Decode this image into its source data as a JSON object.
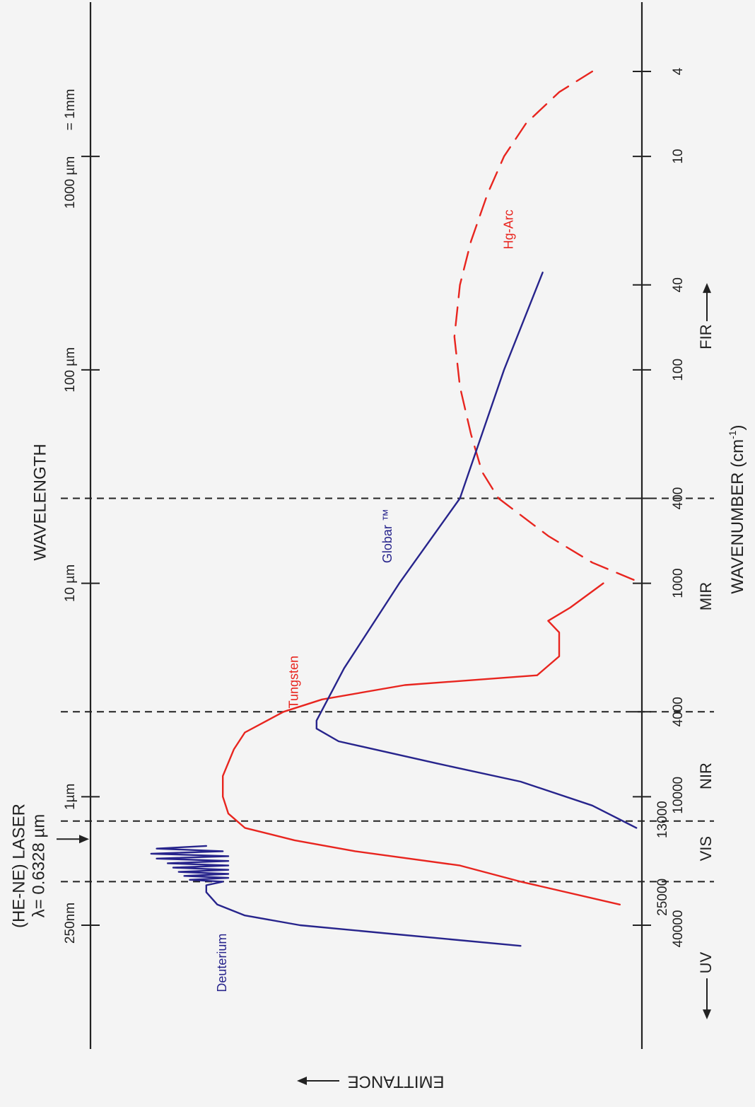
{
  "chart_data": {
    "type": "line",
    "title": "",
    "colors": {
      "red": "#e8251f",
      "blue": "#27248c",
      "axis": "#222222"
    },
    "wavelength_axis": {
      "label": "WAVELENGTH",
      "ticks": [
        {
          "label": "250nm",
          "wavenumber": 40000
        },
        {
          "label": "1µm",
          "wavenumber": 10000
        },
        {
          "label": "10 µm",
          "wavenumber": 1000
        },
        {
          "label": "100 µm",
          "wavenumber": 100
        },
        {
          "label": "1000 µm",
          "wavenumber": 10
        },
        {
          "label": "= 1mm",
          "wavenumber": 10
        }
      ]
    },
    "wavenumber_axis": {
      "label": "WAVENUMBER (cm",
      "label_sup": "-1",
      "label_end": ")",
      "range": [
        4,
        40000
      ],
      "scale": "log",
      "ticks": [
        4,
        10,
        40,
        100,
        400,
        1000,
        4000,
        10000,
        13000,
        25000,
        40000
      ],
      "tick_labels": [
        "4",
        "10",
        "40",
        "100",
        "400",
        "1000",
        "4000",
        "10000",
        "13000",
        "25000",
        "40000"
      ]
    },
    "emittance_label": "EMITTANCE",
    "emittance_range": [
      0,
      1
    ],
    "region_boundaries": [
      400,
      4000,
      13000,
      25000
    ],
    "regions": [
      {
        "label": "FIR",
        "wavenumber": 70,
        "arrow": "right"
      },
      {
        "label": "MIR",
        "wavenumber": 1150,
        "arrow": "none"
      },
      {
        "label": "NIR",
        "wavenumber": 8000,
        "arrow": "none"
      },
      {
        "label": "VIS",
        "wavenumber": 17500,
        "arrow": "none"
      },
      {
        "label": "UV",
        "wavenumber": 60000,
        "arrow": "left"
      }
    ],
    "laser": {
      "line1": "(HE-NE) LASER",
      "line2": "λ= 0.6328 µm",
      "wavenumber": 15800
    },
    "series": [
      {
        "name": "Hg-Arc",
        "color": "#e8251f",
        "dashed": true,
        "points": [
          [
            4,
            0.09
          ],
          [
            5,
            0.15
          ],
          [
            7,
            0.21
          ],
          [
            10,
            0.25
          ],
          [
            15,
            0.28
          ],
          [
            25,
            0.31
          ],
          [
            40,
            0.33
          ],
          [
            70,
            0.34
          ],
          [
            120,
            0.33
          ],
          [
            200,
            0.31
          ],
          [
            300,
            0.29
          ],
          [
            400,
            0.26
          ],
          [
            600,
            0.17
          ],
          [
            800,
            0.09
          ],
          [
            1000,
            0.0
          ]
        ]
      },
      {
        "name": "Tungsten",
        "color": "#e8251f",
        "dashed": false,
        "points": [
          [
            1000,
            0.07
          ],
          [
            1300,
            0.13
          ],
          [
            1500,
            0.17
          ],
          [
            1700,
            0.15
          ],
          [
            2200,
            0.15
          ],
          [
            2700,
            0.19
          ],
          [
            3000,
            0.43
          ],
          [
            3500,
            0.58
          ],
          [
            4000,
            0.65
          ],
          [
            5000,
            0.72
          ],
          [
            6000,
            0.74
          ],
          [
            8000,
            0.76
          ],
          [
            10000,
            0.76
          ],
          [
            12000,
            0.75
          ],
          [
            14000,
            0.72
          ],
          [
            16000,
            0.63
          ],
          [
            18000,
            0.52
          ],
          [
            21000,
            0.33
          ],
          [
            25000,
            0.22
          ],
          [
            32000,
            0.04
          ]
        ]
      },
      {
        "name": "Globar ™",
        "color": "#27248c",
        "dashed": false,
        "points": [
          [
            35,
            0.18
          ],
          [
            100,
            0.25
          ],
          [
            400,
            0.33
          ],
          [
            1000,
            0.44
          ],
          [
            2500,
            0.54
          ],
          [
            4400,
            0.59
          ],
          [
            4800,
            0.59
          ],
          [
            5500,
            0.55
          ],
          [
            7000,
            0.37
          ],
          [
            8500,
            0.22
          ],
          [
            11000,
            0.09
          ],
          [
            14000,
            0.01
          ]
        ]
      },
      {
        "name": "Deuterium",
        "color": "#27248c",
        "dashed": false,
        "points": [
          [
            17000,
            0.79
          ],
          [
            17500,
            0.88
          ],
          [
            18000,
            0.76
          ],
          [
            18500,
            0.89
          ],
          [
            19000,
            0.75
          ],
          [
            19500,
            0.88
          ],
          [
            20000,
            0.75
          ],
          [
            20500,
            0.86
          ],
          [
            21000,
            0.75
          ],
          [
            21500,
            0.85
          ],
          [
            22000,
            0.75
          ],
          [
            22500,
            0.84
          ],
          [
            23000,
            0.75
          ],
          [
            23500,
            0.83
          ],
          [
            24000,
            0.75
          ],
          [
            24500,
            0.82
          ],
          [
            25000,
            0.76
          ],
          [
            26000,
            0.79
          ],
          [
            28000,
            0.79
          ],
          [
            32000,
            0.77
          ],
          [
            36000,
            0.72
          ],
          [
            40000,
            0.62
          ],
          [
            44000,
            0.45
          ],
          [
            50000,
            0.22
          ]
        ]
      }
    ],
    "curve_labels": [
      {
        "name": "Hg-Arc",
        "wavenumber": 22,
        "emittance": 0.24,
        "color": "#e8251f"
      },
      {
        "name": "Tungsten",
        "wavenumber": 2900,
        "emittance": 0.63,
        "color": "#e8251f"
      },
      {
        "name": "Globar ™",
        "wavenumber": 600,
        "emittance": 0.46,
        "color": "#27248c"
      },
      {
        "name": "Deuterium",
        "wavenumber": 60000,
        "emittance": 0.76,
        "color": "#27248c"
      }
    ]
  }
}
